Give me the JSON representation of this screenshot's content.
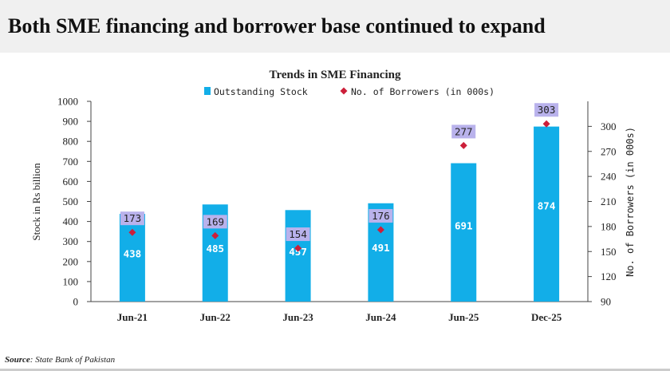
{
  "headline": "Both SME financing and borrower base continued to expand",
  "source": {
    "label": "Source",
    "text": ": State Bank of Pakistan"
  },
  "colors": {
    "bar": "#12aee8",
    "marker": "#cc1f3a",
    "label_box": "#b9b2ec",
    "bar_label_text": "#ffffff",
    "header_band": "#f0f0f0"
  },
  "chart_data": {
    "type": "bar",
    "title": "Trends in SME Financing",
    "categories": [
      "Jun-21",
      "Jun-22",
      "Jun-23",
      "Jun-24",
      "Jun-25",
      "Dec-25"
    ],
    "series": [
      {
        "name": "Outstanding Stock",
        "type": "bar",
        "axis": "left",
        "values": [
          438,
          485,
          457,
          491,
          691,
          874
        ]
      },
      {
        "name": "No. of Borrowers (in 000s)",
        "type": "scatter",
        "marker": "diamond",
        "axis": "right",
        "values": [
          173,
          169,
          154,
          176,
          277,
          303
        ]
      }
    ],
    "ylabel": "Stock in Rs billion",
    "ylim": [
      0,
      1000
    ],
    "yticks": [
      0,
      100,
      200,
      300,
      400,
      500,
      600,
      700,
      800,
      900,
      1000
    ],
    "y2label": "No. of Borrowers (in 000s)",
    "y2lim": [
      90,
      330
    ],
    "y2ticks": [
      90,
      120,
      150,
      180,
      210,
      240,
      270,
      300
    ],
    "legend_position": "top-center",
    "grid": false
  }
}
